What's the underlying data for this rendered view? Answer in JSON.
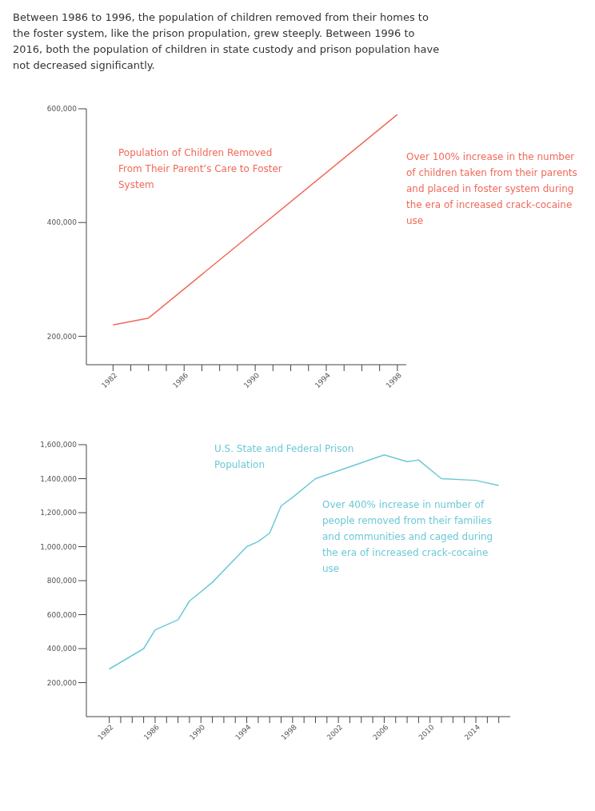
{
  "chart_data": [
    {
      "type": "line",
      "title": "Between 1986 to 1996, the population of children removed from their homes to the foster system, like the prison propulation, grew steeply. Between 1996 to 2016, both the population of children in state custody and prison population have not decreased significantly.",
      "series": [
        {
          "name": "Population of Children Removed From Their Parent’s Care to Foster System",
          "color": "#f06a5a",
          "x": [
            1982,
            1984,
            1998
          ],
          "values": [
            220000,
            232000,
            590000
          ]
        }
      ],
      "annotations": [
        "Over 100% increase in the number of children taken from their parents and placed in foster system during the era of increased crack-cocaine use"
      ],
      "xlim": [
        1980.5,
        1998.5
      ],
      "xticks": [
        {
          "value": 1982,
          "label": "1982"
        },
        {
          "value": 1983,
          "label": null
        },
        {
          "value": 1984,
          "label": null
        },
        {
          "value": 1985,
          "label": null
        },
        {
          "value": 1986,
          "label": "1986"
        },
        {
          "value": 1987,
          "label": null
        },
        {
          "value": 1988,
          "label": null
        },
        {
          "value": 1989,
          "label": null
        },
        {
          "value": 1990,
          "label": "1990"
        },
        {
          "value": 1991,
          "label": null
        },
        {
          "value": 1992,
          "label": null
        },
        {
          "value": 1993,
          "label": null
        },
        {
          "value": 1994,
          "label": "1994"
        },
        {
          "value": 1995,
          "label": null
        },
        {
          "value": 1996,
          "label": null
        },
        {
          "value": 1997,
          "label": null
        },
        {
          "value": 1998,
          "label": "1998"
        }
      ],
      "ylim": [
        150000,
        600000
      ],
      "yticks": [
        {
          "value": 200000,
          "label": "200,000"
        },
        {
          "value": 400000,
          "label": "400,000"
        },
        {
          "value": 600000,
          "label": "600,000"
        }
      ]
    },
    {
      "type": "line",
      "series": [
        {
          "name": "U.S. State and Federal Prison Population",
          "color": "#6cc9d6",
          "x": [
            1982,
            1985,
            1986,
            1988,
            1989,
            1991,
            1994,
            1995,
            1996,
            1997,
            1998,
            2000,
            2006,
            2008,
            2009,
            2011,
            2014,
            2016
          ],
          "values": [
            280000,
            400000,
            510000,
            570000,
            680000,
            790000,
            1000000,
            1030000,
            1080000,
            1240000,
            1290000,
            1400000,
            1540000,
            1500000,
            1510000,
            1400000,
            1390000,
            1360000
          ]
        }
      ],
      "annotations": [
        "Over 400% increase in number of people removed from their families and communities and caged during the era of increased crack-cocaine use"
      ],
      "xlim": [
        1980,
        2017
      ],
      "xticks": [
        {
          "value": 1982,
          "label": "1982"
        },
        {
          "value": 1983,
          "label": null
        },
        {
          "value": 1984,
          "label": null
        },
        {
          "value": 1985,
          "label": null
        },
        {
          "value": 1986,
          "label": "1986"
        },
        {
          "value": 1987,
          "label": null
        },
        {
          "value": 1988,
          "label": null
        },
        {
          "value": 1989,
          "label": null
        },
        {
          "value": 1990,
          "label": "1990"
        },
        {
          "value": 1991,
          "label": null
        },
        {
          "value": 1992,
          "label": null
        },
        {
          "value": 1993,
          "label": null
        },
        {
          "value": 1994,
          "label": "1994"
        },
        {
          "value": 1995,
          "label": null
        },
        {
          "value": 1996,
          "label": null
        },
        {
          "value": 1997,
          "label": null
        },
        {
          "value": 1998,
          "label": "1998"
        },
        {
          "value": 1999,
          "label": null
        },
        {
          "value": 2000,
          "label": null
        },
        {
          "value": 2001,
          "label": null
        },
        {
          "value": 2002,
          "label": "2002"
        },
        {
          "value": 2003,
          "label": null
        },
        {
          "value": 2004,
          "label": null
        },
        {
          "value": 2005,
          "label": null
        },
        {
          "value": 2006,
          "label": "2006"
        },
        {
          "value": 2007,
          "label": null
        },
        {
          "value": 2008,
          "label": null
        },
        {
          "value": 2009,
          "label": null
        },
        {
          "value": 2010,
          "label": "2010"
        },
        {
          "value": 2011,
          "label": null
        },
        {
          "value": 2012,
          "label": null
        },
        {
          "value": 2013,
          "label": null
        },
        {
          "value": 2014,
          "label": "2014"
        },
        {
          "value": 2015,
          "label": null
        },
        {
          "value": 2016,
          "label": null
        }
      ],
      "ylim": [
        0,
        1600000
      ],
      "yticks": [
        {
          "value": 200000,
          "label": "200,000"
        },
        {
          "value": 400000,
          "label": "400,000"
        },
        {
          "value": 600000,
          "label": "600,000"
        },
        {
          "value": 800000,
          "label": "800,000"
        },
        {
          "value": 1000000,
          "label": "1,000,000"
        },
        {
          "value": 1200000,
          "label": "1,200,000"
        },
        {
          "value": 1400000,
          "label": "1,400,000"
        },
        {
          "value": 1600000,
          "label": "1,600,000"
        }
      ]
    }
  ]
}
